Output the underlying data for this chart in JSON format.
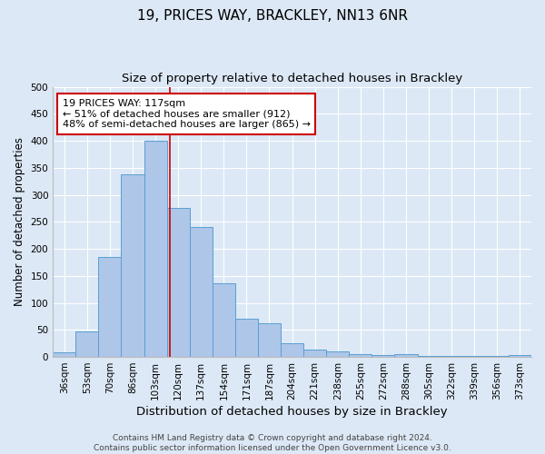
{
  "title": "19, PRICES WAY, BRACKLEY, NN13 6NR",
  "subtitle": "Size of property relative to detached houses in Brackley",
  "xlabel": "Distribution of detached houses by size in Brackley",
  "ylabel": "Number of detached properties",
  "categories": [
    "36sqm",
    "53sqm",
    "70sqm",
    "86sqm",
    "103sqm",
    "120sqm",
    "137sqm",
    "154sqm",
    "171sqm",
    "187sqm",
    "204sqm",
    "221sqm",
    "238sqm",
    "255sqm",
    "272sqm",
    "288sqm",
    "305sqm",
    "322sqm",
    "339sqm",
    "356sqm",
    "373sqm"
  ],
  "values": [
    8,
    47,
    185,
    338,
    400,
    275,
    240,
    137,
    70,
    63,
    25,
    13,
    10,
    5,
    4,
    5,
    1,
    1,
    1,
    1,
    4
  ],
  "bar_color": "#aec6e8",
  "bar_edge_color": "#5a9fd4",
  "background_color": "#dce8f5",
  "vline_x": 4.65,
  "vline_color": "#cc0000",
  "annotation_text": "19 PRICES WAY: 117sqm\n← 51% of detached houses are smaller (912)\n48% of semi-detached houses are larger (865) →",
  "annotation_box_color": "#ffffff",
  "annotation_box_edge": "#cc0000",
  "ylim": [
    0,
    500
  ],
  "yticks": [
    0,
    50,
    100,
    150,
    200,
    250,
    300,
    350,
    400,
    450,
    500
  ],
  "footer": "Contains HM Land Registry data © Crown copyright and database right 2024.\nContains public sector information licensed under the Open Government Licence v3.0.",
  "title_fontsize": 11,
  "subtitle_fontsize": 9.5,
  "xlabel_fontsize": 9.5,
  "ylabel_fontsize": 8.5,
  "tick_fontsize": 7.5,
  "annotation_fontsize": 8.0,
  "footer_fontsize": 6.5
}
